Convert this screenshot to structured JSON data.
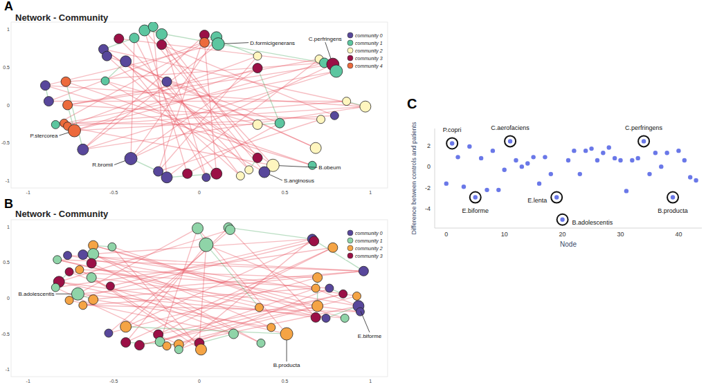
{
  "chart_data": [
    {
      "type": "network",
      "panel": "A",
      "title": "Network - Community",
      "xlim": [
        -1.1,
        1.1
      ],
      "ylim": [
        -1.1,
        1.1
      ],
      "xticks": [
        -1,
        -0.5,
        0,
        0.5,
        1
      ],
      "yticks": [
        -1,
        -0.5,
        0,
        0.5,
        1
      ],
      "grid": false,
      "legend": "top-right",
      "series": [
        {
          "name": "community 0",
          "color": "#58479b"
        },
        {
          "name": "community 1",
          "color": "#5cc6a0"
        },
        {
          "name": "community 2",
          "color": "#fff6bf"
        },
        {
          "name": "community 3",
          "color": "#9b1046"
        },
        {
          "name": "community 4",
          "color": "#ec6a3c"
        }
      ],
      "nodes": {
        "x": [
          -0.56,
          -0.54,
          -0.43,
          -0.38,
          -0.32,
          -0.27,
          -0.22,
          -0.22,
          -0.47,
          0.03,
          0.03,
          0.1,
          0.11,
          0.34,
          0.34,
          0.7,
          0.73,
          0.78,
          0.8,
          -0.9,
          -0.78,
          -0.55,
          -0.88,
          -0.77,
          -0.19,
          0.86,
          0.97,
          0.79,
          0.71,
          0.47,
          0.34,
          -0.84,
          -0.79,
          -0.77,
          -0.73,
          -0.68,
          -0.4,
          -0.24,
          -0.19,
          -0.07,
          0.04,
          0.1,
          0.34,
          0.24,
          0.29,
          0.43,
          0.38,
          0.66,
          0.68
        ],
        "y": [
          0.74,
          0.65,
          0.58,
          0.89,
          0.99,
          1.04,
          0.8,
          0.94,
          0.88,
          0.93,
          0.83,
          0.9,
          0.81,
          0.65,
          0.49,
          0.61,
          0.56,
          0.54,
          0.45,
          0.26,
          0.31,
          0.32,
          0.05,
          0,
          0.31,
          0.05,
          -0.02,
          -0.14,
          -0.19,
          -0.24,
          -0.26,
          -0.26,
          -0.24,
          -0.28,
          -0.34,
          -0.59,
          -0.71,
          -0.88,
          -0.96,
          -0.91,
          -0.96,
          -0.91,
          -0.7,
          -0.94,
          -0.86,
          -0.8,
          -0.89,
          -0.8,
          -0.57
        ],
        "size": [
          7,
          7,
          8,
          7,
          8,
          7,
          7,
          8,
          7,
          7,
          7,
          8,
          9,
          6,
          7,
          6,
          7,
          9,
          9,
          7,
          7,
          6,
          7,
          7,
          7,
          6,
          8,
          6,
          6,
          7,
          7,
          6,
          6,
          6,
          9,
          8,
          9,
          7,
          8,
          7,
          6,
          8,
          7,
          6,
          6,
          9,
          8,
          6,
          8
        ],
        "community": [
          0,
          0,
          0,
          1,
          1,
          1,
          3,
          1,
          3,
          3,
          4,
          1,
          1,
          2,
          3,
          2,
          1,
          3,
          1,
          0,
          4,
          1,
          0,
          4,
          0,
          2,
          2,
          0,
          2,
          1,
          2,
          1,
          4,
          4,
          4,
          0,
          0,
          0,
          0,
          3,
          0,
          3,
          3,
          2,
          2,
          2,
          0,
          1,
          2
        ]
      },
      "edges": [
        [
          0,
          26,
          -1
        ],
        [
          0,
          45,
          -1
        ],
        [
          1,
          29,
          -1
        ],
        [
          2,
          48,
          -1
        ],
        [
          3,
          36,
          -1
        ],
        [
          4,
          46,
          -1
        ],
        [
          5,
          38,
          -1
        ],
        [
          6,
          27,
          -1
        ],
        [
          7,
          42,
          -1
        ],
        [
          8,
          17,
          -1
        ],
        [
          9,
          35,
          -1
        ],
        [
          10,
          31,
          -1
        ],
        [
          11,
          22,
          -1
        ],
        [
          12,
          19,
          -1
        ],
        [
          13,
          37,
          -1
        ],
        [
          14,
          34,
          -1
        ],
        [
          15,
          23,
          -1
        ],
        [
          16,
          20,
          -1
        ],
        [
          17,
          36,
          -1
        ],
        [
          18,
          35,
          -1
        ],
        [
          19,
          26,
          -1
        ],
        [
          20,
          47,
          -1
        ],
        [
          21,
          30,
          -1
        ],
        [
          22,
          25,
          -1
        ],
        [
          23,
          28,
          -1
        ],
        [
          24,
          43,
          -1
        ],
        [
          25,
          31,
          -1
        ],
        [
          26,
          33,
          -1
        ],
        [
          27,
          34,
          -1
        ],
        [
          28,
          37,
          -1
        ],
        [
          29,
          39,
          -1
        ],
        [
          30,
          32,
          -1
        ],
        [
          31,
          45,
          -1
        ],
        [
          32,
          18,
          -1
        ],
        [
          33,
          13,
          -1
        ],
        [
          34,
          16,
          -1
        ],
        [
          35,
          12,
          -1
        ],
        [
          36,
          14,
          -1
        ],
        [
          37,
          9,
          -1
        ],
        [
          38,
          15,
          -1
        ],
        [
          39,
          4,
          -1
        ],
        [
          40,
          3,
          -1
        ],
        [
          41,
          2,
          -1
        ],
        [
          42,
          0,
          -1
        ],
        [
          43,
          1,
          -1
        ],
        [
          44,
          8,
          -1
        ],
        [
          45,
          6,
          -1
        ],
        [
          46,
          21,
          -1
        ],
        [
          47,
          19,
          -1
        ],
        [
          48,
          24,
          -1
        ],
        [
          5,
          44,
          -1
        ],
        [
          7,
          40,
          -1
        ],
        [
          10,
          41,
          -1
        ],
        [
          11,
          36,
          -1
        ],
        [
          17,
          23,
          -1
        ],
        [
          26,
          35,
          -1
        ],
        [
          0,
          3,
          1
        ],
        [
          2,
          21,
          1
        ],
        [
          12,
          16,
          1
        ],
        [
          17,
          18,
          1
        ],
        [
          45,
          46,
          1
        ],
        [
          36,
          37,
          1
        ],
        [
          34,
          23,
          1
        ],
        [
          19,
          22,
          1
        ],
        [
          25,
          26,
          1
        ],
        [
          42,
          44,
          1
        ],
        [
          9,
          13,
          1
        ],
        [
          29,
          30,
          1
        ],
        [
          4,
          12,
          1
        ],
        [
          14,
          29,
          1
        ],
        [
          38,
          41,
          1
        ],
        [
          20,
          35,
          1
        ]
      ],
      "annotations": [
        {
          "node": 12,
          "text": "D.formicigenerans"
        },
        {
          "node": 17,
          "text": "C.perfringens"
        },
        {
          "node": 34,
          "text": "P.stercorea"
        },
        {
          "node": 36,
          "text": "R.bromii"
        },
        {
          "node": 45,
          "text": "B.obeum"
        },
        {
          "node": 46,
          "text": "S.anginosus"
        }
      ]
    },
    {
      "type": "network",
      "panel": "B",
      "title": "Network - Community",
      "xlim": [
        -1.1,
        1.1
      ],
      "ylim": [
        -1.1,
        1.1
      ],
      "xticks": [
        -1,
        -0.5,
        0,
        0.5,
        1
      ],
      "yticks": [
        -1,
        -0.5,
        0,
        0.5,
        1
      ],
      "grid": false,
      "legend": "top-right",
      "series": [
        {
          "name": "community 0",
          "color": "#58479b"
        },
        {
          "name": "community 1",
          "color": "#8fd4a8"
        },
        {
          "name": "community 2",
          "color": "#f5a445"
        },
        {
          "name": "community 3",
          "color": "#9b1046"
        }
      ],
      "nodes": {
        "x": [
          -0.01,
          0.17,
          0.18,
          0.04,
          0.66,
          0.67,
          0.78,
          0.96,
          -0.62,
          -0.51,
          -0.68,
          -0.62,
          -0.77,
          -0.83,
          -0.76,
          -0.63,
          -0.7,
          -0.63,
          -0.52,
          -0.82,
          -0.84,
          -0.71,
          -0.76,
          -0.68,
          -0.62,
          0.69,
          0.68,
          0.76,
          0.84,
          0.92,
          0.69,
          0.93,
          0.94,
          0.74,
          0.85,
          0.68,
          -0.43,
          -0.53,
          -0.43,
          -0.35,
          -0.24,
          -0.23,
          -0.12,
          -0.19,
          -0.12,
          0,
          0.01,
          0.2,
          0.36,
          0.51,
          0.35,
          0.42
        ],
        "y": [
          0.98,
          0.99,
          0.96,
          0.75,
          0.83,
          0.8,
          0.71,
          0.38,
          0.74,
          0.72,
          0.61,
          0.62,
          0.6,
          0.54,
          0.37,
          0.49,
          0.4,
          0.29,
          0.17,
          0.23,
          0.15,
          0.06,
          -0.03,
          -0.1,
          -0.02,
          0.29,
          0.14,
          0.14,
          0.06,
          0.03,
          -0.11,
          -0.11,
          -0.19,
          -0.28,
          -0.28,
          -0.27,
          -0.4,
          -0.49,
          -0.62,
          -0.66,
          -0.51,
          -0.61,
          -0.65,
          -0.67,
          -0.72,
          -0.63,
          -0.72,
          -0.5,
          -0.63,
          -0.5,
          -0.13,
          -0.41
        ],
        "size": [
          8,
          7,
          7,
          10,
          7,
          7,
          7,
          7,
          7,
          6,
          7,
          8,
          6,
          6,
          6,
          7,
          6,
          7,
          6,
          8,
          6,
          9,
          6,
          6,
          7,
          7,
          6,
          6,
          6,
          6,
          8,
          8,
          6,
          6,
          6,
          7,
          8,
          6,
          7,
          7,
          7,
          7,
          7,
          6,
          6,
          7,
          8,
          7,
          6,
          9,
          6,
          6
        ],
        "community": [
          1,
          1,
          1,
          1,
          0,
          3,
          2,
          0,
          2,
          1,
          0,
          1,
          0,
          1,
          3,
          3,
          2,
          1,
          3,
          3,
          1,
          1,
          2,
          2,
          2,
          2,
          2,
          0,
          3,
          2,
          2,
          0,
          0,
          0,
          1,
          3,
          2,
          0,
          3,
          3,
          3,
          1,
          2,
          2,
          1,
          3,
          2,
          1,
          1,
          2,
          2,
          2
        ]
      },
      "edges": [
        [
          0,
          21,
          -1
        ],
        [
          0,
          49,
          -1
        ],
        [
          1,
          36,
          -1
        ],
        [
          2,
          19,
          -1
        ],
        [
          3,
          31,
          -1
        ],
        [
          4,
          10,
          -1
        ],
        [
          5,
          22,
          -1
        ],
        [
          6,
          38,
          -1
        ],
        [
          7,
          13,
          -1
        ],
        [
          8,
          30,
          -1
        ],
        [
          9,
          46,
          -1
        ],
        [
          10,
          29,
          -1
        ],
        [
          11,
          51,
          -1
        ],
        [
          12,
          7,
          -1
        ],
        [
          13,
          33,
          -1
        ],
        [
          14,
          27,
          -1
        ],
        [
          15,
          48,
          -1
        ],
        [
          16,
          25,
          -1
        ],
        [
          17,
          32,
          -1
        ],
        [
          18,
          4,
          -1
        ],
        [
          19,
          35,
          -1
        ],
        [
          20,
          6,
          -1
        ],
        [
          21,
          34,
          -1
        ],
        [
          22,
          47,
          -1
        ],
        [
          23,
          26,
          -1
        ],
        [
          24,
          7,
          -1
        ],
        [
          25,
          37,
          -1
        ],
        [
          26,
          41,
          -1
        ],
        [
          27,
          44,
          -1
        ],
        [
          28,
          40,
          -1
        ],
        [
          29,
          43,
          -1
        ],
        [
          30,
          39,
          -1
        ],
        [
          31,
          12,
          -1
        ],
        [
          32,
          23,
          -1
        ],
        [
          33,
          9,
          -1
        ],
        [
          34,
          8,
          -1
        ],
        [
          35,
          1,
          -1
        ],
        [
          36,
          5,
          -1
        ],
        [
          37,
          2,
          -1
        ],
        [
          38,
          3,
          -1
        ],
        [
          39,
          28,
          -1
        ],
        [
          40,
          6,
          -1
        ],
        [
          41,
          0,
          -1
        ],
        [
          42,
          20,
          -1
        ],
        [
          43,
          31,
          -1
        ],
        [
          44,
          4,
          -1
        ],
        [
          45,
          16,
          -1
        ],
        [
          46,
          17,
          -1
        ],
        [
          47,
          14,
          -1
        ],
        [
          48,
          11,
          -1
        ],
        [
          49,
          19,
          -1
        ],
        [
          50,
          13,
          -1
        ],
        [
          51,
          24,
          -1
        ],
        [
          3,
          45,
          -1
        ],
        [
          7,
          21,
          -1
        ],
        [
          0,
          3,
          1
        ],
        [
          4,
          7,
          1
        ],
        [
          10,
          11,
          1
        ],
        [
          21,
          24,
          1
        ],
        [
          31,
          33,
          1
        ],
        [
          36,
          49,
          1
        ],
        [
          45,
          47,
          1
        ],
        [
          3,
          50,
          1
        ],
        [
          14,
          19,
          1
        ],
        [
          25,
          30,
          1
        ],
        [
          38,
          42,
          1
        ],
        [
          8,
          9,
          1
        ],
        [
          27,
          28,
          1
        ],
        [
          1,
          4,
          1
        ]
      ],
      "annotations": [
        {
          "node": 21,
          "text": "B.adolescentis"
        },
        {
          "node": 49,
          "text": "B.producta"
        },
        {
          "node": 31,
          "text": "E.biforme"
        }
      ]
    },
    {
      "type": "scatter",
      "panel": "C",
      "xlabel": "Node",
      "ylabel": "Difference between controls and patients",
      "xlim": [
        -2,
        44
      ],
      "ylim": [
        -5.8,
        3.6
      ],
      "xticks": [
        0,
        10,
        20,
        30,
        40
      ],
      "yticks": [
        -4,
        -2,
        0,
        2
      ],
      "grid": false,
      "color": "#6a78e8",
      "x": [
        0,
        1,
        2,
        3,
        4,
        5,
        6,
        7,
        8,
        9,
        10,
        11,
        12,
        13,
        14,
        15,
        16,
        17,
        18,
        19,
        20,
        21,
        22,
        23,
        24,
        25,
        26,
        27,
        28,
        29,
        30,
        31,
        32,
        33,
        34,
        35,
        36,
        37,
        38,
        39,
        40,
        41,
        42,
        43
      ],
      "values": [
        -1.6,
        2.2,
        0.9,
        -1.9,
        1.9,
        -2.9,
        0.8,
        -2.2,
        1.5,
        -2.2,
        -0.3,
        2.4,
        0.6,
        0,
        0.3,
        0.9,
        -1.6,
        0.9,
        -0.7,
        -2.9,
        -5.0,
        0.6,
        1.5,
        -0.7,
        1.5,
        1.7,
        0.6,
        1.3,
        1.8,
        0.8,
        0.6,
        -2.3,
        0.6,
        0.8,
        2.4,
        -0.7,
        1.3,
        0,
        1.3,
        -2.9,
        1.5,
        0.6,
        -1.0,
        -1.3
      ],
      "annotations": [
        {
          "index": 1,
          "text": "P.copri"
        },
        {
          "index": 5,
          "text": "E.biforme"
        },
        {
          "index": 11,
          "text": "C.aerofaciens"
        },
        {
          "index": 19,
          "text": "E.lenta"
        },
        {
          "index": 20,
          "text": "B.adolescentis"
        },
        {
          "index": 34,
          "text": "C.perfringens"
        },
        {
          "index": 39,
          "text": "B.producta"
        }
      ]
    }
  ]
}
